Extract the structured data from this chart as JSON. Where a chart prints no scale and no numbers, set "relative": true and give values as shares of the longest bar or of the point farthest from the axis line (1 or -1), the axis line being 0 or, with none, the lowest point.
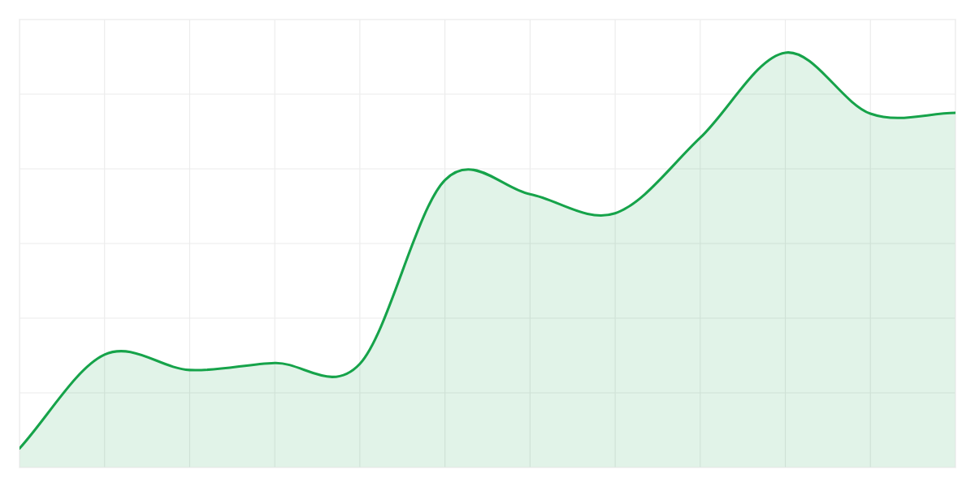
{
  "chart_data": {
    "type": "area",
    "relative": true,
    "grid": true,
    "categories": [
      null,
      null,
      null,
      null,
      null,
      null,
      null,
      null,
      null,
      null,
      null,
      null
    ],
    "series": [
      {
        "color": "#16a34a",
        "values": [
          0.046,
          0.272,
          0.235,
          0.252,
          0.25,
          0.693,
          0.659,
          0.613,
          0.795,
          1.0,
          0.853,
          0.855
        ]
      }
    ]
  }
}
